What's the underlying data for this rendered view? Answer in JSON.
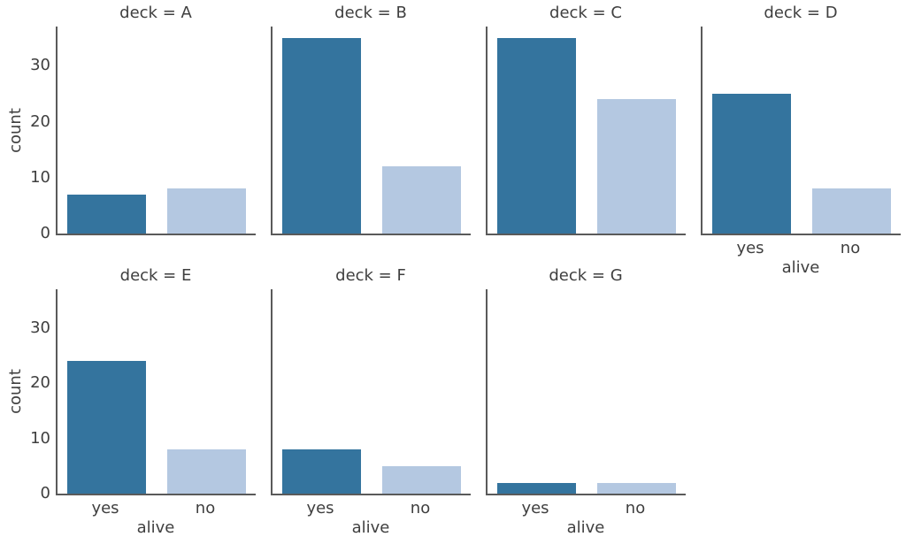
{
  "figure": {
    "background": "#ffffff",
    "text_color": "#3f3f3f",
    "spine_color": "#5a5a5a"
  },
  "chart_data": {
    "type": "bar",
    "kind": "facet-countplot",
    "facet_var": "deck",
    "x_var": "alive",
    "categories": [
      "yes",
      "no"
    ],
    "series_colors": [
      "#34749e",
      "#b4c8e1"
    ],
    "xlabel": "alive",
    "ylabel": "count",
    "yticks": [
      0,
      10,
      20,
      30
    ],
    "ylim": [
      0,
      37
    ],
    "grid": false,
    "legend": null,
    "facets": [
      {
        "title": "deck = A",
        "deck": "A",
        "values": [
          7,
          8
        ],
        "row": 0,
        "col": 0,
        "show_y": true,
        "show_x": false
      },
      {
        "title": "deck = B",
        "deck": "B",
        "values": [
          35,
          12
        ],
        "row": 0,
        "col": 1,
        "show_y": false,
        "show_x": false
      },
      {
        "title": "deck = C",
        "deck": "C",
        "values": [
          35,
          24
        ],
        "row": 0,
        "col": 2,
        "show_y": false,
        "show_x": false
      },
      {
        "title": "deck = D",
        "deck": "D",
        "values": [
          25,
          8
        ],
        "row": 0,
        "col": 3,
        "show_y": false,
        "show_x": true
      },
      {
        "title": "deck = E",
        "deck": "E",
        "values": [
          24,
          8
        ],
        "row": 1,
        "col": 0,
        "show_y": true,
        "show_x": true
      },
      {
        "title": "deck = F",
        "deck": "F",
        "values": [
          8,
          5
        ],
        "row": 1,
        "col": 1,
        "show_y": false,
        "show_x": true
      },
      {
        "title": "deck = G",
        "deck": "G",
        "values": [
          2,
          2
        ],
        "row": 1,
        "col": 2,
        "show_y": false,
        "show_x": true
      }
    ]
  }
}
